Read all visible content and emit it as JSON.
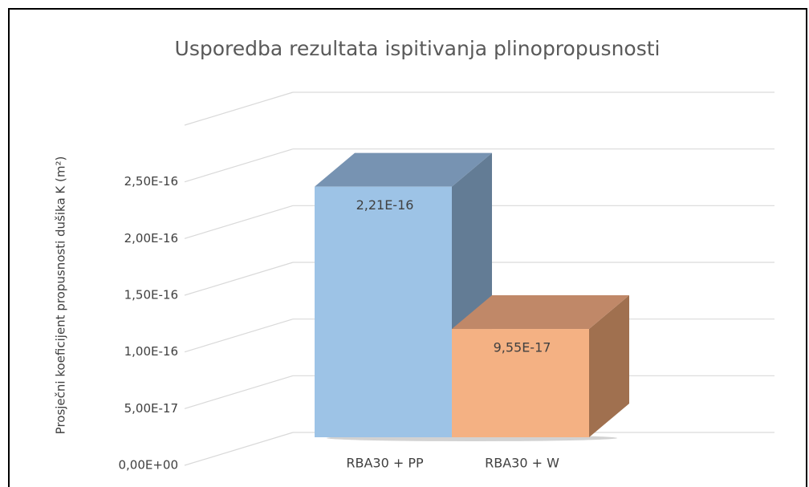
{
  "chart_data": {
    "type": "bar3d",
    "title": "Usporedba rezultata ispitivanja plinopropusnosti",
    "y_label": "Prosječni koeficijent propusnosti dušika K (m²)",
    "categories": [
      "RBA30 + PP",
      "RBA30 + W"
    ],
    "values": [
      2.21e-16,
      9.55e-17
    ],
    "value_labels": [
      "2,21E-16",
      "9,55E-17"
    ],
    "colors": [
      {
        "front": "#9dc3e6",
        "top": "#7793b2",
        "side": "#637c95"
      },
      {
        "front": "#f4b183",
        "top": "#c08868",
        "side": "#a0704f"
      }
    ],
    "ylim": [
      0,
      3e-16
    ],
    "yticks": [
      {
        "value": 0,
        "label": "0,00E+00"
      },
      {
        "value": 5e-17,
        "label": "5,00E-17"
      },
      {
        "value": 1e-16,
        "label": "1,00E-16"
      },
      {
        "value": 1.5e-16,
        "label": "1,50E-16"
      },
      {
        "value": 2e-16,
        "label": "2,00E-16"
      },
      {
        "value": 2.5e-16,
        "label": "2,50E-16"
      }
    ],
    "grid": true
  }
}
